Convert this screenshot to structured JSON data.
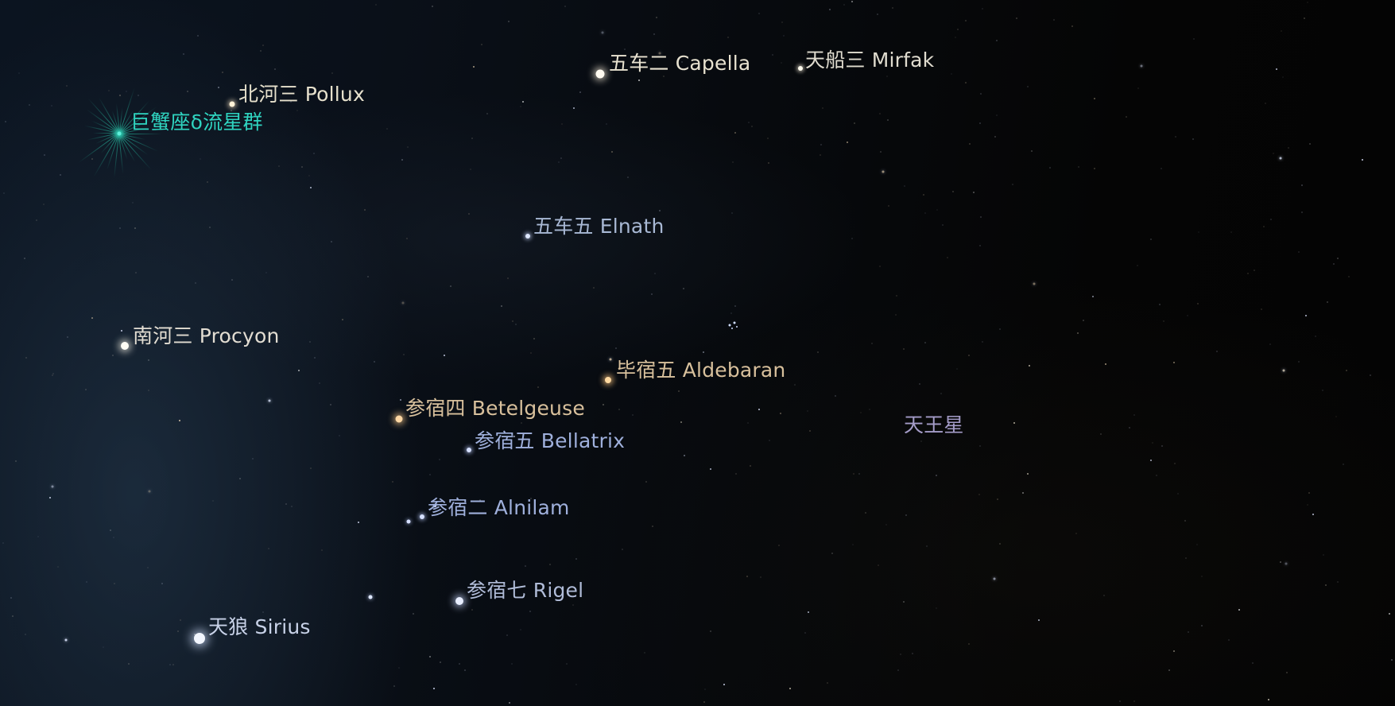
{
  "stars_named": [
    {
      "id": "pollux",
      "label": "北河三 Pollux",
      "color": "#e6e0cc"
    },
    {
      "id": "cancri-delta",
      "label": "巨蟹座δ流星群",
      "color": "#2fd4c0"
    },
    {
      "id": "capella",
      "label": "五车二 Capella",
      "color": "#e8e2d0"
    },
    {
      "id": "mirfak",
      "label": "天船三 Mirfak",
      "color": "#e0dccf"
    },
    {
      "id": "elnath",
      "label": "五车五 Elnath",
      "color": "#a8b8d4"
    },
    {
      "id": "procyon",
      "label": "南河三 Procyon",
      "color": "#e2ddd2"
    },
    {
      "id": "aldebaran",
      "label": "毕宿五 Aldebaran",
      "color": "#d8c09c"
    },
    {
      "id": "betelgeuse",
      "label": "参宿四 Betelgeuse",
      "color": "#d8c09c"
    },
    {
      "id": "bellatrix",
      "label": "参宿五 Bellatrix",
      "color": "#9fb0dc"
    },
    {
      "id": "uranus",
      "label": "天王星",
      "color": "#a49cc8"
    },
    {
      "id": "alnilam",
      "label": "参宿二 Alnilam",
      "color": "#9fb0dc"
    },
    {
      "id": "rigel",
      "label": "参宿七 Rigel",
      "color": "#b0bcd8"
    },
    {
      "id": "sirius",
      "label": "天狼 Sirius",
      "color": "#c8d2e8"
    }
  ]
}
